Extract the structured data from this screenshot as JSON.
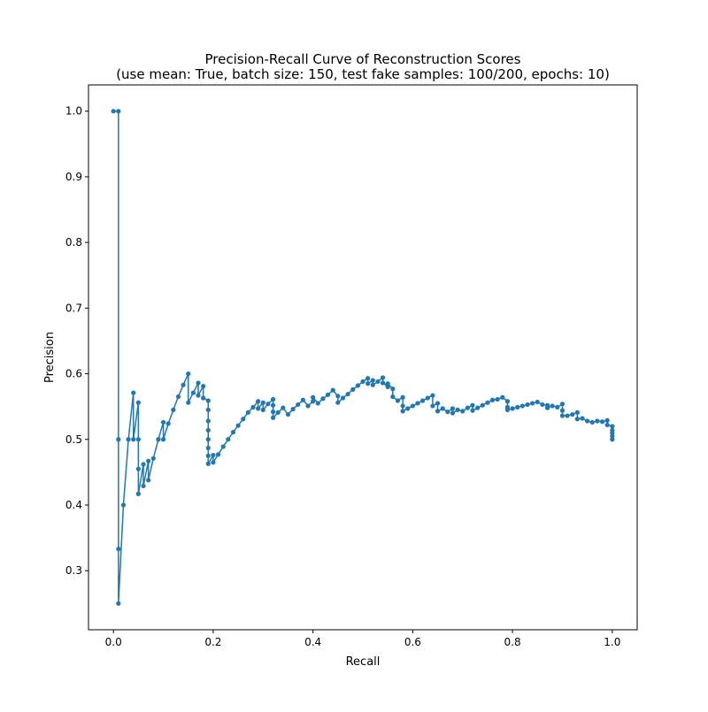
{
  "chart_data": {
    "type": "line",
    "title": "Precision-Recall Curve of Reconstruction Scores",
    "subtitle": "(use mean: True, batch size: 150, test fake samples: 100/200, epochs: 10)",
    "xlabel": "Recall",
    "ylabel": "Precision",
    "xlim": [
      -0.05,
      1.05
    ],
    "ylim": [
      0.21,
      1.04
    ],
    "xticks": [
      0.0,
      0.2,
      0.4,
      0.6,
      0.8,
      1.0
    ],
    "xtick_labels": [
      "0.0",
      "0.2",
      "0.4",
      "0.6",
      "0.8",
      "1.0"
    ],
    "yticks": [
      0.3,
      0.4,
      0.5,
      0.6,
      0.7,
      0.8,
      0.9,
      1.0
    ],
    "ytick_labels": [
      "0.3",
      "0.4",
      "0.5",
      "0.6",
      "0.7",
      "0.8",
      "0.9",
      "1.0"
    ],
    "grid": false,
    "legend": "none",
    "series_color": "#1f77b4",
    "marker": "circle",
    "series": [
      {
        "name": "",
        "x": [
          0.0,
          0.01,
          0.01,
          0.01,
          0.01,
          0.02,
          0.03,
          0.04,
          0.04,
          0.05,
          0.05,
          0.05,
          0.05,
          0.06,
          0.06,
          0.07,
          0.07,
          0.08,
          0.09,
          0.1,
          0.1,
          0.11,
          0.12,
          0.13,
          0.14,
          0.15,
          0.15,
          0.16,
          0.17,
          0.17,
          0.18,
          0.18,
          0.19,
          0.19,
          0.19,
          0.19,
          0.19,
          0.19,
          0.19,
          0.19,
          0.2,
          0.2,
          0.21,
          0.22,
          0.23,
          0.24,
          0.25,
          0.26,
          0.27,
          0.28,
          0.29,
          0.29,
          0.3,
          0.3,
          0.31,
          0.32,
          0.32,
          0.32,
          0.32,
          0.33,
          0.34,
          0.35,
          0.36,
          0.37,
          0.38,
          0.39,
          0.4,
          0.4,
          0.41,
          0.42,
          0.43,
          0.44,
          0.45,
          0.45,
          0.46,
          0.47,
          0.48,
          0.49,
          0.5,
          0.51,
          0.51,
          0.52,
          0.52,
          0.53,
          0.54,
          0.54,
          0.55,
          0.55,
          0.56,
          0.56,
          0.57,
          0.58,
          0.58,
          0.58,
          0.59,
          0.6,
          0.61,
          0.62,
          0.63,
          0.64,
          0.64,
          0.65,
          0.65,
          0.66,
          0.67,
          0.68,
          0.68,
          0.69,
          0.7,
          0.71,
          0.72,
          0.72,
          0.73,
          0.74,
          0.75,
          0.76,
          0.77,
          0.78,
          0.79,
          0.79,
          0.79,
          0.8,
          0.81,
          0.82,
          0.83,
          0.84,
          0.85,
          0.86,
          0.87,
          0.87,
          0.88,
          0.89,
          0.9,
          0.9,
          0.9,
          0.91,
          0.92,
          0.93,
          0.93,
          0.94,
          0.95,
          0.96,
          0.97,
          0.98,
          0.99,
          0.99,
          1.0,
          1.0,
          1.0,
          1.0,
          1.0
        ],
        "y": [
          1.0,
          1.0,
          0.5,
          0.333,
          0.25,
          0.4,
          0.5,
          0.571,
          0.5,
          0.556,
          0.5,
          0.455,
          0.417,
          0.462,
          0.429,
          0.467,
          0.438,
          0.471,
          0.5,
          0.526,
          0.5,
          0.524,
          0.545,
          0.565,
          0.583,
          0.6,
          0.556,
          0.571,
          0.586,
          0.567,
          0.581,
          0.563,
          0.559,
          0.545,
          0.528,
          0.514,
          0.5,
          0.487,
          0.475,
          0.463,
          0.476,
          0.465,
          0.477,
          0.489,
          0.5,
          0.511,
          0.521,
          0.531,
          0.541,
          0.549,
          0.558,
          0.547,
          0.556,
          0.545,
          0.554,
          0.561,
          0.552,
          0.542,
          0.533,
          0.541,
          0.548,
          0.538,
          0.546,
          0.553,
          0.56,
          0.551,
          0.558,
          0.564,
          0.555,
          0.562,
          0.568,
          0.575,
          0.566,
          0.556,
          0.563,
          0.569,
          0.576,
          0.582,
          0.588,
          0.593,
          0.585,
          0.59,
          0.583,
          0.588,
          0.594,
          0.586,
          0.58,
          0.585,
          0.577,
          0.565,
          0.559,
          0.564,
          0.551,
          0.543,
          0.547,
          0.551,
          0.555,
          0.559,
          0.563,
          0.567,
          0.551,
          0.555,
          0.543,
          0.547,
          0.542,
          0.547,
          0.54,
          0.545,
          0.543,
          0.548,
          0.552,
          0.544,
          0.548,
          0.552,
          0.556,
          0.56,
          0.561,
          0.564,
          0.558,
          0.549,
          0.545,
          0.547,
          0.549,
          0.551,
          0.553,
          0.555,
          0.557,
          0.553,
          0.552,
          0.548,
          0.551,
          0.549,
          0.554,
          0.544,
          0.536,
          0.536,
          0.538,
          0.541,
          0.531,
          0.532,
          0.528,
          0.526,
          0.528,
          0.527,
          0.529,
          0.522,
          0.52,
          0.514,
          0.51,
          0.505,
          0.5
        ]
      }
    ]
  }
}
